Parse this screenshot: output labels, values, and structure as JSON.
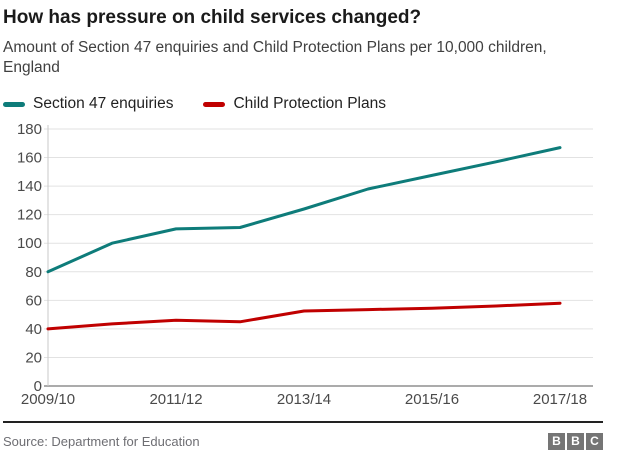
{
  "header": {
    "title": "How has pressure on child services changed?",
    "subtitle": "Amount of Section 47 enquiries and Child Protection Plans per 10,000 children, England"
  },
  "legend": {
    "items": [
      {
        "label": "Section 47 enquiries",
        "color": "#0e7c7a"
      },
      {
        "label": "Child Protection Plans",
        "color": "#c00000"
      }
    ]
  },
  "chart_data": {
    "type": "line",
    "title": "How has pressure on child services changed?",
    "subtitle": "Amount of Section 47 enquiries and Child Protection Plans per 10,000 children, England",
    "categories": [
      "2009/10",
      "2010/11",
      "2011/12",
      "2012/13",
      "2013/14",
      "2014/15",
      "2015/16",
      "2016/17",
      "2017/18"
    ],
    "series": [
      {
        "name": "Section 47 enquiries",
        "color": "#0e7c7a",
        "values": [
          80,
          100,
          110,
          111,
          124,
          138,
          147.5,
          157,
          167
        ]
      },
      {
        "name": "Child Protection Plans",
        "color": "#c00000",
        "values": [
          40,
          43.5,
          46,
          45,
          52.5,
          53.5,
          54.5,
          56,
          58
        ]
      }
    ],
    "x_tick_labels": [
      "2009/10",
      "2011/12",
      "2013/14",
      "2015/16",
      "2017/18"
    ],
    "y_ticks": [
      0,
      20,
      40,
      60,
      80,
      100,
      120,
      140,
      160,
      180
    ],
    "ylim": [
      0,
      180
    ],
    "xlabel": "",
    "ylabel": "",
    "grid": "horizontal",
    "legend_position": "top"
  },
  "style": {
    "grid_color": "#e2e2e2",
    "y_axis_color": "#c9c9c9",
    "x_axis_color": "#8f8f8f",
    "tick_text_color": "#4a4a4a",
    "line_width": 3
  },
  "footer": {
    "source": "Source: Department for Education",
    "logo_letters": [
      "B",
      "B",
      "C"
    ]
  }
}
